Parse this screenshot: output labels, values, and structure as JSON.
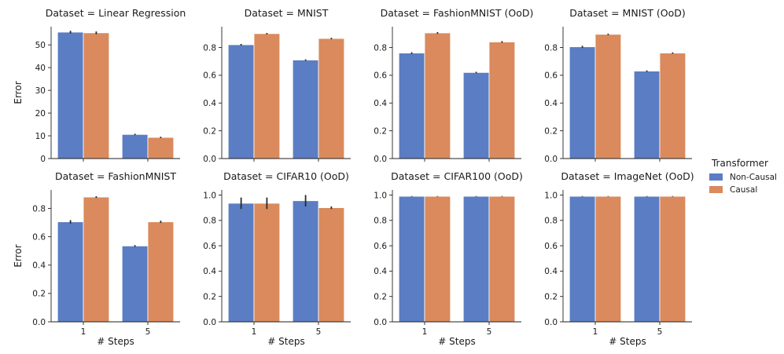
{
  "chart_data": {
    "type": "bar",
    "ylabel": "Error",
    "xlabel": "# Steps",
    "categories": [
      "1",
      "5"
    ],
    "legend": {
      "title": "Transformer",
      "placement": "right",
      "entries": [
        {
          "name": "Non-Causal",
          "color": "#5a7dc4"
        },
        {
          "name": "Causal",
          "color": "#da8a5c"
        }
      ]
    },
    "panels": [
      {
        "title": "Dataset = Linear Regression",
        "ylim": [
          0,
          58
        ],
        "yticks": [
          0,
          10,
          20,
          30,
          40,
          50
        ],
        "series": [
          {
            "name": "Non-Causal",
            "values": [
              55.6,
              10.6
            ],
            "errors": [
              0.6,
              0.3
            ]
          },
          {
            "name": "Causal",
            "values": [
              55.3,
              9.3
            ],
            "errors": [
              0.6,
              0.3
            ]
          }
        ]
      },
      {
        "title": "Dataset = MNIST",
        "ylim": [
          0,
          0.95
        ],
        "yticks": [
          0.0,
          0.2,
          0.4,
          0.6,
          0.8
        ],
        "series": [
          {
            "name": "Non-Causal",
            "values": [
              0.82,
              0.71
            ],
            "errors": [
              0.006,
              0.005
            ]
          },
          {
            "name": "Causal",
            "values": [
              0.9,
              0.865
            ],
            "errors": [
              0.005,
              0.005
            ]
          }
        ]
      },
      {
        "title": "Dataset = FashionMNIST (OoD)",
        "ylim": [
          0,
          0.95
        ],
        "yticks": [
          0.0,
          0.2,
          0.4,
          0.6,
          0.8
        ],
        "series": [
          {
            "name": "Non-Causal",
            "values": [
              0.76,
              0.62
            ],
            "errors": [
              0.006,
              0.005
            ]
          },
          {
            "name": "Causal",
            "values": [
              0.905,
              0.84
            ],
            "errors": [
              0.006,
              0.006
            ]
          }
        ]
      },
      {
        "title": "Dataset = MNIST (OoD)",
        "ylim": [
          0,
          0.95
        ],
        "yticks": [
          0.0,
          0.2,
          0.4,
          0.6,
          0.8
        ],
        "series": [
          {
            "name": "Non-Causal",
            "values": [
              0.805,
              0.63
            ],
            "errors": [
              0.007,
              0.005
            ]
          },
          {
            "name": "Causal",
            "values": [
              0.895,
              0.76
            ],
            "errors": [
              0.005,
              0.005
            ]
          }
        ]
      },
      {
        "title": "Dataset = FashionMNIST",
        "ylim": [
          0,
          0.93
        ],
        "yticks": [
          0.0,
          0.2,
          0.4,
          0.6,
          0.8
        ],
        "series": [
          {
            "name": "Non-Causal",
            "values": [
              0.705,
              0.535
            ],
            "errors": [
              0.012,
              0.006
            ]
          },
          {
            "name": "Causal",
            "values": [
              0.88,
              0.705
            ],
            "errors": [
              0.006,
              0.008
            ]
          }
        ]
      },
      {
        "title": "Dataset = CIFAR10 (OoD)",
        "ylim": [
          0,
          1.04
        ],
        "yticks": [
          0.0,
          0.2,
          0.4,
          0.6,
          0.8,
          1.0
        ],
        "series": [
          {
            "name": "Non-Causal",
            "values": [
              0.935,
              0.955
            ],
            "errors": [
              0.045,
              0.045
            ]
          },
          {
            "name": "Causal",
            "values": [
              0.935,
              0.9
            ],
            "errors": [
              0.045,
              0.01
            ]
          }
        ]
      },
      {
        "title": "Dataset = CIFAR100 (OoD)",
        "ylim": [
          0,
          1.04
        ],
        "yticks": [
          0.0,
          0.2,
          0.4,
          0.6,
          0.8,
          1.0
        ],
        "series": [
          {
            "name": "Non-Causal",
            "values": [
              0.99,
              0.99
            ],
            "errors": [
              0.002,
              0.002
            ]
          },
          {
            "name": "Causal",
            "values": [
              0.99,
              0.99
            ],
            "errors": [
              0.002,
              0.002
            ]
          }
        ]
      },
      {
        "title": "Dataset = ImageNet (OoD)",
        "ylim": [
          0,
          1.04
        ],
        "yticks": [
          0.0,
          0.2,
          0.4,
          0.6,
          0.8,
          1.0
        ],
        "series": [
          {
            "name": "Non-Causal",
            "values": [
              0.99,
              0.99
            ],
            "errors": [
              0.002,
              0.002
            ]
          },
          {
            "name": "Causal",
            "values": [
              0.99,
              0.99
            ],
            "errors": [
              0.002,
              0.002
            ]
          }
        ]
      }
    ]
  }
}
